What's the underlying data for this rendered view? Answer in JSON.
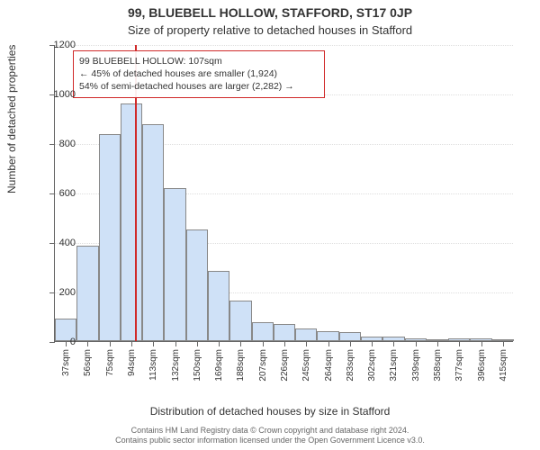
{
  "title": "99, BLUEBELL HOLLOW, STAFFORD, ST17 0JP",
  "subtitle": "Size of property relative to detached houses in Stafford",
  "y_axis_label": "Number of detached properties",
  "x_axis_label": "Distribution of detached houses by size in Stafford",
  "chart": {
    "type": "histogram",
    "bar_fill": "#cfe1f7",
    "bar_border": "#888888",
    "marker_color": "#d02a2a",
    "annotation_border": "#d02a2a",
    "background_color": "#ffffff",
    "grid_color": "#dddddd",
    "axis_color": "#666666",
    "ylim": [
      0,
      1200
    ],
    "ytick_step": 200,
    "y_ticks": [
      0,
      200,
      400,
      600,
      800,
      1000,
      1200
    ],
    "x_labels": [
      "37sqm",
      "56sqm",
      "75sqm",
      "94sqm",
      "113sqm",
      "132sqm",
      "150sqm",
      "169sqm",
      "188sqm",
      "207sqm",
      "226sqm",
      "245sqm",
      "264sqm",
      "283sqm",
      "302sqm",
      "321sqm",
      "339sqm",
      "358sqm",
      "377sqm",
      "396sqm",
      "415sqm"
    ],
    "values": [
      90,
      385,
      835,
      960,
      875,
      620,
      450,
      285,
      165,
      75,
      70,
      50,
      40,
      35,
      20,
      18,
      10,
      8,
      10,
      10,
      8
    ],
    "marker_bin_index": 3,
    "marker_fraction_in_bin": 0.68,
    "title_fontsize": 14,
    "subtitle_fontsize": 13,
    "axis_label_fontsize": 12,
    "tick_fontsize": 11,
    "x_tick_fontsize": 10,
    "annotation_fontsize": 10.5
  },
  "annotation": {
    "line1": "99 BLUEBELL HOLLOW: 107sqm",
    "line2": "← 45% of detached houses are smaller (1,924)",
    "line3": "54% of semi-detached houses are larger (2,282) →"
  },
  "footer": {
    "line1": "Contains HM Land Registry data © Crown copyright and database right 2024.",
    "line2": "Contains public sector information licensed under the Open Government Licence v3.0."
  }
}
